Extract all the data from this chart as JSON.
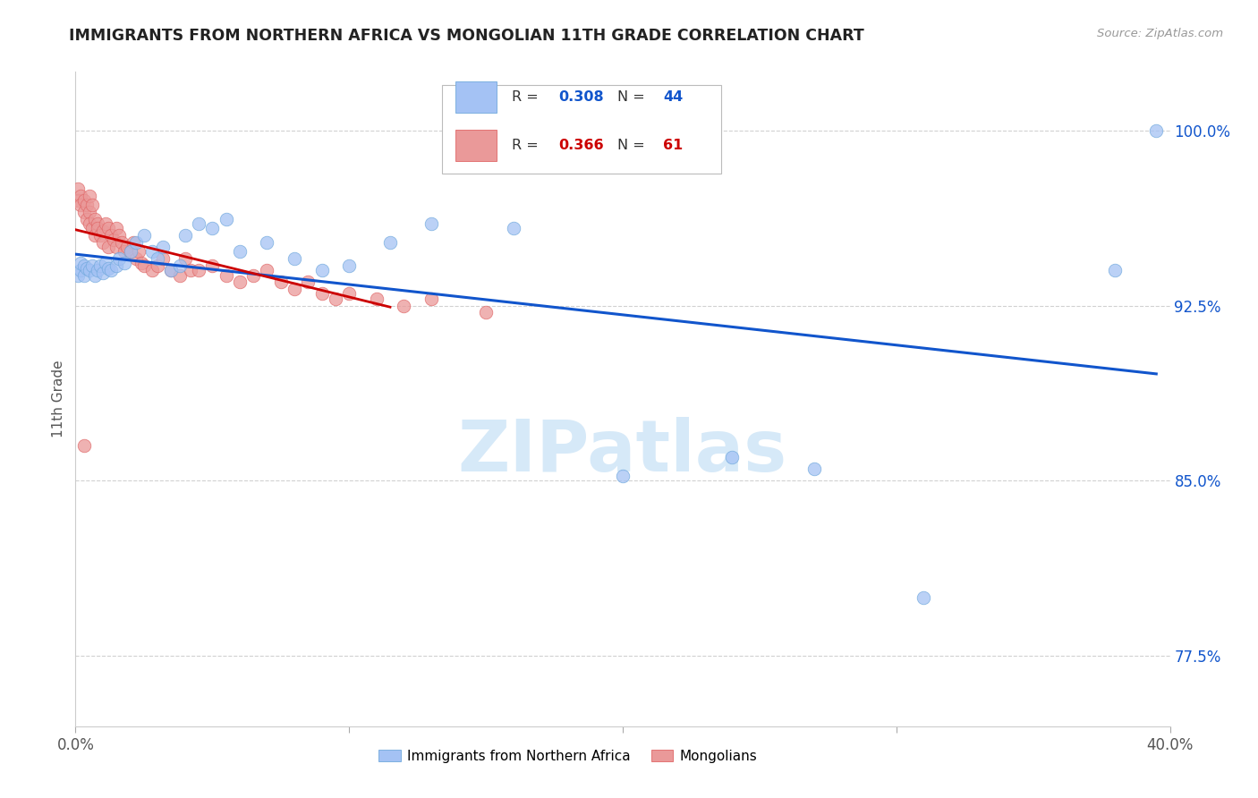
{
  "title": "IMMIGRANTS FROM NORTHERN AFRICA VS MONGOLIAN 11TH GRADE CORRELATION CHART",
  "source": "Source: ZipAtlas.com",
  "ylabel": "11th Grade",
  "yticks": [
    0.775,
    0.85,
    0.925,
    1.0
  ],
  "ytick_labels": [
    "77.5%",
    "85.0%",
    "92.5%",
    "100.0%"
  ],
  "xlim": [
    0.0,
    0.4
  ],
  "ylim": [
    0.745,
    1.025
  ],
  "blue_R": 0.308,
  "blue_N": 44,
  "pink_R": 0.366,
  "pink_N": 61,
  "blue_color": "#a4c2f4",
  "pink_color": "#ea9999",
  "blue_line_color": "#1155cc",
  "pink_line_color": "#cc0000",
  "legend_blue_R_color": "#1155cc",
  "legend_pink_R_color": "#cc0000",
  "watermark_color": "#d6e9f8",
  "blue_x": [
    0.001,
    0.002,
    0.002,
    0.003,
    0.003,
    0.004,
    0.005,
    0.006,
    0.007,
    0.008,
    0.009,
    0.01,
    0.011,
    0.012,
    0.013,
    0.015,
    0.016,
    0.018,
    0.02,
    0.022,
    0.025,
    0.028,
    0.03,
    0.032,
    0.035,
    0.038,
    0.04,
    0.045,
    0.05,
    0.055,
    0.06,
    0.07,
    0.08,
    0.09,
    0.1,
    0.115,
    0.13,
    0.16,
    0.2,
    0.24,
    0.27,
    0.31,
    0.38,
    0.395
  ],
  "blue_y": [
    0.938,
    0.94,
    0.943,
    0.942,
    0.938,
    0.941,
    0.94,
    0.942,
    0.938,
    0.94,
    0.942,
    0.939,
    0.943,
    0.941,
    0.94,
    0.942,
    0.945,
    0.943,
    0.948,
    0.952,
    0.955,
    0.948,
    0.945,
    0.95,
    0.94,
    0.942,
    0.955,
    0.96,
    0.958,
    0.962,
    0.948,
    0.952,
    0.945,
    0.94,
    0.942,
    0.952,
    0.96,
    0.958,
    0.852,
    0.86,
    0.855,
    0.8,
    0.94,
    1.0
  ],
  "pink_x": [
    0.001,
    0.001,
    0.002,
    0.002,
    0.003,
    0.003,
    0.004,
    0.004,
    0.005,
    0.005,
    0.005,
    0.006,
    0.006,
    0.007,
    0.007,
    0.008,
    0.008,
    0.009,
    0.01,
    0.01,
    0.011,
    0.012,
    0.012,
    0.013,
    0.014,
    0.015,
    0.015,
    0.016,
    0.017,
    0.018,
    0.019,
    0.02,
    0.021,
    0.022,
    0.023,
    0.024,
    0.025,
    0.028,
    0.03,
    0.032,
    0.035,
    0.038,
    0.04,
    0.042,
    0.045,
    0.05,
    0.055,
    0.06,
    0.065,
    0.07,
    0.075,
    0.08,
    0.085,
    0.09,
    0.095,
    0.1,
    0.11,
    0.12,
    0.13,
    0.15,
    0.003
  ],
  "pink_y": [
    0.975,
    0.97,
    0.972,
    0.968,
    0.965,
    0.97,
    0.968,
    0.962,
    0.965,
    0.96,
    0.972,
    0.968,
    0.958,
    0.962,
    0.955,
    0.96,
    0.958,
    0.955,
    0.957,
    0.952,
    0.96,
    0.958,
    0.95,
    0.955,
    0.953,
    0.958,
    0.95,
    0.955,
    0.952,
    0.948,
    0.95,
    0.948,
    0.952,
    0.945,
    0.948,
    0.943,
    0.942,
    0.94,
    0.942,
    0.945,
    0.94,
    0.938,
    0.945,
    0.94,
    0.94,
    0.942,
    0.938,
    0.935,
    0.938,
    0.94,
    0.935,
    0.932,
    0.935,
    0.93,
    0.928,
    0.93,
    0.928,
    0.925,
    0.928,
    0.922,
    0.865
  ],
  "pink_line_xlim": [
    0.0,
    0.115
  ],
  "blue_line_xlim": [
    0.0,
    0.395
  ]
}
